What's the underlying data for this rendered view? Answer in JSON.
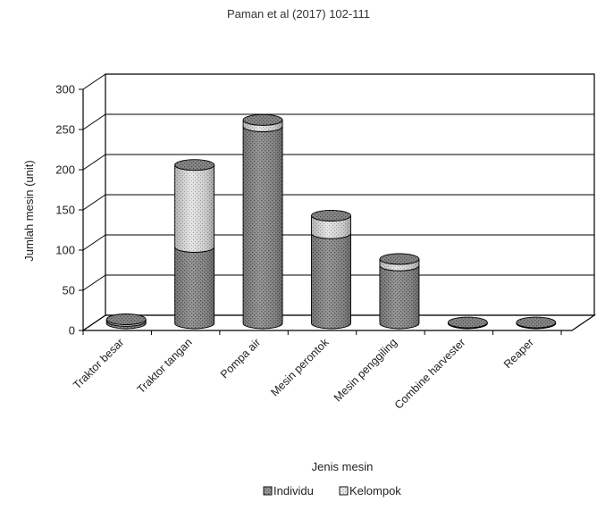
{
  "header": {
    "citation": "Paman et al (2017) 102-111"
  },
  "chart_data": {
    "type": "bar",
    "stacked": true,
    "three_d": true,
    "title": "",
    "xlabel": "Jenis mesin",
    "ylabel": "Jumlah mesin (unit)",
    "ylim": [
      0,
      300
    ],
    "yticks": [
      0,
      50,
      100,
      150,
      200,
      250,
      300
    ],
    "grid": true,
    "legend_position": "bottom",
    "categories": [
      "Traktor besar",
      "Traktor tangan",
      "Pompa air",
      "Mesin perontok",
      "Mesin penggiling",
      "Combine harvester",
      "Reaper"
    ],
    "series": [
      {
        "name": "Individu",
        "values": [
          3,
          95,
          245,
          112,
          72,
          1,
          1
        ],
        "color": "#8f8f8f"
      },
      {
        "name": "Kelompok",
        "values": [
          2,
          102,
          8,
          22,
          8,
          0,
          0
        ],
        "color": "#dcdcdc"
      }
    ]
  }
}
